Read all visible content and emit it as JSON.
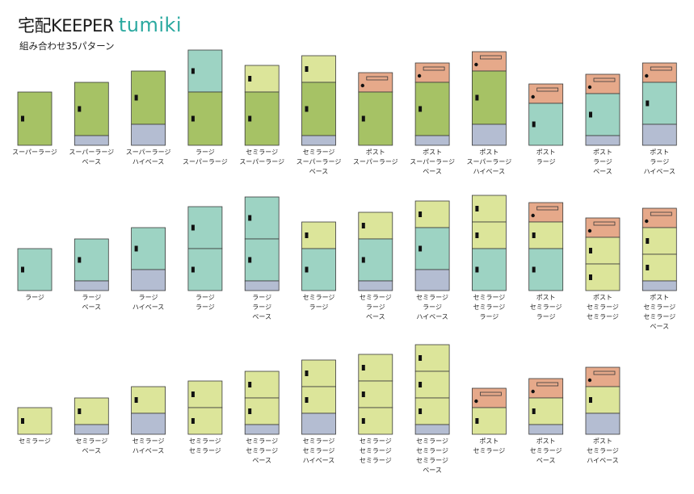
{
  "brand": {
    "title_main": "宅配KEEPER",
    "title_accent": "tumiki",
    "accent_color": "#2ba9a0",
    "subtitle": "組み合わせ35パターン"
  },
  "colors": {
    "super_large": "#a6c265",
    "large": "#9dd3c3",
    "semi_large": "#dce59a",
    "post": "#e6a98a",
    "base": "#b4bdd2",
    "outline": "#3a3a3a",
    "handle": "#111111"
  },
  "module_names": {
    "super_large": "スーパーラージ",
    "large": "ラージ",
    "semi_large": "セミラージ",
    "post": "ポスト",
    "base": "ベース",
    "high_base": "ハイベース"
  },
  "rows": [
    [
      {
        "stack": [
          "super_large"
        ],
        "caption": [
          "スーパーラージ"
        ]
      },
      {
        "stack": [
          "super_large",
          "base"
        ],
        "caption": [
          "スーパーラージ",
          "ベース"
        ]
      },
      {
        "stack": [
          "super_large",
          "high_base"
        ],
        "caption": [
          "スーパーラージ",
          "ハイベース"
        ]
      },
      {
        "stack": [
          "large",
          "super_large"
        ],
        "caption": [
          "ラージ",
          "スーパーラージ"
        ]
      },
      {
        "stack": [
          "semi_large",
          "super_large"
        ],
        "caption": [
          "セミラージ",
          "スーパーラージ"
        ]
      },
      {
        "stack": [
          "semi_large",
          "super_large",
          "base"
        ],
        "caption": [
          "セミラージ",
          "スーパーラージ",
          "ベース"
        ]
      },
      {
        "stack": [
          "post",
          "super_large"
        ],
        "caption": [
          "ポスト",
          "スーパーラージ"
        ]
      },
      {
        "stack": [
          "post",
          "super_large",
          "base"
        ],
        "caption": [
          "ポスト",
          "スーパーラージ",
          "ベース"
        ]
      },
      {
        "stack": [
          "post",
          "super_large",
          "high_base"
        ],
        "caption": [
          "ポスト",
          "スーパーラージ",
          "ハイベース"
        ]
      },
      {
        "stack": [
          "post",
          "large"
        ],
        "caption": [
          "ポスト",
          "ラージ"
        ]
      },
      {
        "stack": [
          "post",
          "large",
          "base"
        ],
        "caption": [
          "ポスト",
          "ラージ",
          "ベース"
        ]
      },
      {
        "stack": [
          "post",
          "large",
          "high_base"
        ],
        "caption": [
          "ポスト",
          "ラージ",
          "ハイベース"
        ]
      }
    ],
    [
      {
        "stack": [
          "large"
        ],
        "caption": [
          "ラージ"
        ]
      },
      {
        "stack": [
          "large",
          "base"
        ],
        "caption": [
          "ラージ",
          "ベース"
        ]
      },
      {
        "stack": [
          "large",
          "high_base"
        ],
        "caption": [
          "ラージ",
          "ハイベース"
        ]
      },
      {
        "stack": [
          "large",
          "large"
        ],
        "caption": [
          "ラージ",
          "ラージ"
        ]
      },
      {
        "stack": [
          "large",
          "large",
          "base"
        ],
        "caption": [
          "ラージ",
          "ラージ",
          "ベース"
        ]
      },
      {
        "stack": [
          "semi_large",
          "large"
        ],
        "caption": [
          "セミラージ",
          "ラージ"
        ]
      },
      {
        "stack": [
          "semi_large",
          "large",
          "base"
        ],
        "caption": [
          "セミラージ",
          "ラージ",
          "ベース"
        ]
      },
      {
        "stack": [
          "semi_large",
          "large",
          "high_base"
        ],
        "caption": [
          "セミラージ",
          "ラージ",
          "ハイベース"
        ]
      },
      {
        "stack": [
          "semi_large",
          "semi_large",
          "large"
        ],
        "caption": [
          "セミラージ",
          "セミラージ",
          "ラージ"
        ]
      },
      {
        "stack": [
          "post",
          "semi_large",
          "large"
        ],
        "caption": [
          "ポスト",
          "セミラージ",
          "ラージ"
        ]
      },
      {
        "stack": [
          "post",
          "semi_large",
          "semi_large"
        ],
        "caption": [
          "ポスト",
          "セミラージ",
          "セミラージ"
        ]
      },
      {
        "stack": [
          "post",
          "semi_large",
          "semi_large",
          "base"
        ],
        "caption": [
          "ポスト",
          "セミラージ",
          "セミラージ",
          "ベース"
        ]
      }
    ],
    [
      {
        "stack": [
          "semi_large"
        ],
        "caption": [
          "セミラージ"
        ]
      },
      {
        "stack": [
          "semi_large",
          "base"
        ],
        "caption": [
          "セミラージ",
          "ベース"
        ]
      },
      {
        "stack": [
          "semi_large",
          "high_base"
        ],
        "caption": [
          "セミラージ",
          "ハイベース"
        ]
      },
      {
        "stack": [
          "semi_large",
          "semi_large"
        ],
        "caption": [
          "セミラージ",
          "セミラージ"
        ]
      },
      {
        "stack": [
          "semi_large",
          "semi_large",
          "base"
        ],
        "caption": [
          "セミラージ",
          "セミラージ",
          "ベース"
        ]
      },
      {
        "stack": [
          "semi_large",
          "semi_large",
          "high_base"
        ],
        "caption": [
          "セミラージ",
          "セミラージ",
          "ハイベース"
        ]
      },
      {
        "stack": [
          "semi_large",
          "semi_large",
          "semi_large"
        ],
        "caption": [
          "セミラージ",
          "セミラージ",
          "セミラージ"
        ]
      },
      {
        "stack": [
          "semi_large",
          "semi_large",
          "semi_large",
          "base"
        ],
        "caption": [
          "セミラージ",
          "セミラージ",
          "セミラージ",
          "ベース"
        ]
      },
      {
        "stack": [
          "post",
          "semi_large"
        ],
        "caption": [
          "ポスト",
          "セミラージ"
        ]
      },
      {
        "stack": [
          "post",
          "semi_large",
          "base"
        ],
        "caption": [
          "ポスト",
          "セミラージ",
          "ベース"
        ]
      },
      {
        "stack": [
          "post",
          "semi_large",
          "high_base"
        ],
        "caption": [
          "ポスト",
          "セミラージ",
          "ハイベース"
        ]
      }
    ]
  ]
}
